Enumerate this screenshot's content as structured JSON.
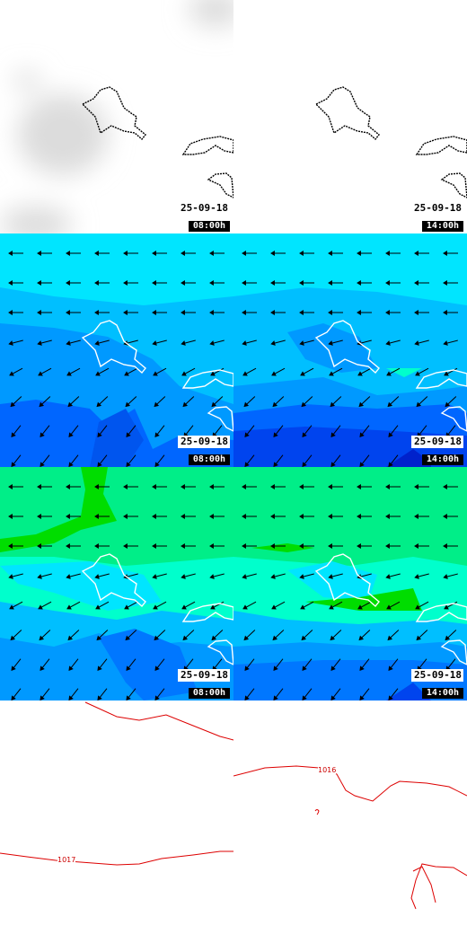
{
  "date_label": "25-09-18",
  "times": [
    "08:00h",
    "14:00h"
  ],
  "rows": [
    {
      "name": "clouds"
    },
    {
      "name": "wind-speed"
    },
    {
      "name": "gust"
    },
    {
      "name": "pressure"
    }
  ],
  "isobars": {
    "left_label": "1017",
    "right_label": "1016"
  },
  "colors": {
    "coast_dark": "#000000",
    "coast_light": "#ffffff",
    "cyan": "#00e5ff",
    "light_blue": "#00bfff",
    "mid_blue": "#0099ff",
    "blue": "#0066ff",
    "deep_blue": "#0033ee",
    "aqua": "#00ffcc",
    "green": "#00ee88",
    "bright_green": "#00dd00",
    "isobar": "#dd0000"
  },
  "panels": [
    {
      "row": 0,
      "col": 0,
      "time": "08:00h"
    },
    {
      "row": 0,
      "col": 1,
      "time": "14:00h"
    },
    {
      "row": 1,
      "col": 0,
      "time": "08:00h"
    },
    {
      "row": 1,
      "col": 1,
      "time": "14:00h"
    },
    {
      "row": 2,
      "col": 0,
      "time": "08:00h"
    },
    {
      "row": 2,
      "col": 1,
      "time": "14:00h"
    }
  ]
}
